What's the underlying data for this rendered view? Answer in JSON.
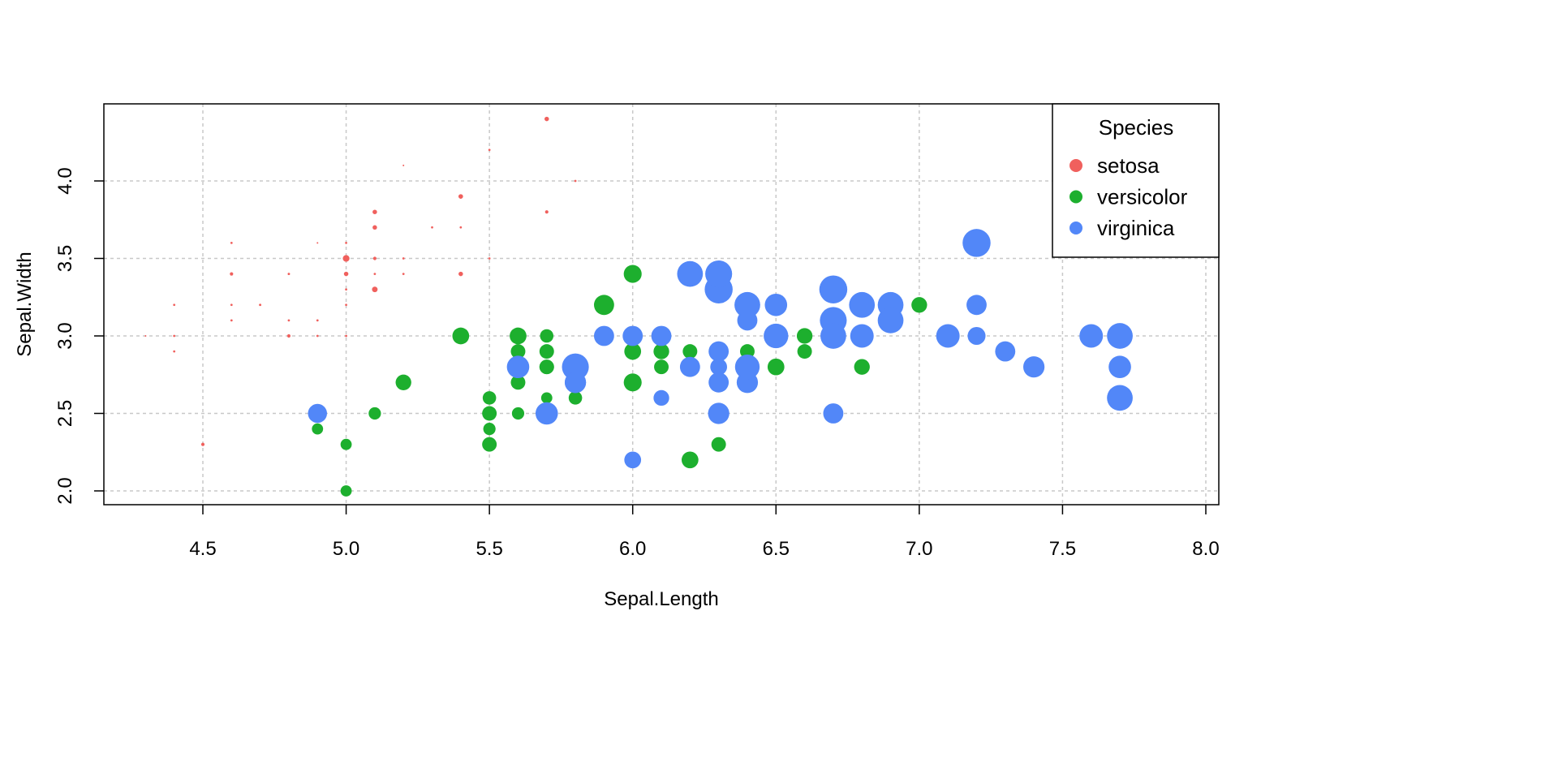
{
  "chart_data": {
    "type": "scatter",
    "title": "",
    "xlabel": "Sepal.Length",
    "ylabel": "Sepal.Width",
    "xlim": [
      4.3,
      8.0
    ],
    "ylim": [
      2.0,
      4.4
    ],
    "xticks": [
      "4.5",
      "5.0",
      "5.5",
      "6.0",
      "6.5",
      "7.0",
      "7.5",
      "8.0"
    ],
    "yticks": [
      "2.0",
      "2.5",
      "3.0",
      "3.5",
      "4.0"
    ],
    "grid": true,
    "legend": {
      "title": "Species",
      "placement": "top-right"
    },
    "point_format": "[x, y, size]",
    "series": [
      {
        "name": "setosa",
        "color": "#F0605D",
        "points": [
          [
            5.1,
            3.5,
            0.2
          ],
          [
            4.9,
            3.0,
            0.2
          ],
          [
            4.7,
            3.2,
            0.2
          ],
          [
            4.6,
            3.1,
            0.2
          ],
          [
            5.0,
            3.6,
            0.2
          ],
          [
            5.4,
            3.9,
            0.4
          ],
          [
            4.6,
            3.4,
            0.3
          ],
          [
            5.0,
            3.4,
            0.2
          ],
          [
            4.4,
            2.9,
            0.2
          ],
          [
            4.9,
            3.1,
            0.1
          ],
          [
            5.4,
            3.7,
            0.2
          ],
          [
            4.8,
            3.4,
            0.2
          ],
          [
            4.8,
            3.0,
            0.1
          ],
          [
            4.3,
            3.0,
            0.1
          ],
          [
            5.8,
            4.0,
            0.2
          ],
          [
            5.7,
            4.4,
            0.4
          ],
          [
            5.4,
            3.9,
            0.4
          ],
          [
            5.1,
            3.5,
            0.3
          ],
          [
            5.7,
            3.8,
            0.3
          ],
          [
            5.1,
            3.8,
            0.3
          ],
          [
            5.4,
            3.4,
            0.2
          ],
          [
            5.1,
            3.7,
            0.4
          ],
          [
            4.6,
            3.6,
            0.2
          ],
          [
            5.1,
            3.3,
            0.5
          ],
          [
            4.8,
            3.4,
            0.2
          ],
          [
            5.0,
            3.0,
            0.2
          ],
          [
            5.0,
            3.4,
            0.4
          ],
          [
            5.2,
            3.5,
            0.2
          ],
          [
            5.2,
            3.4,
            0.2
          ],
          [
            4.7,
            3.2,
            0.2
          ],
          [
            4.8,
            3.1,
            0.2
          ],
          [
            5.4,
            3.4,
            0.4
          ],
          [
            5.2,
            4.1,
            0.1
          ],
          [
            5.5,
            4.2,
            0.2
          ],
          [
            4.9,
            3.1,
            0.2
          ],
          [
            5.0,
            3.2,
            0.2
          ],
          [
            5.5,
            3.5,
            0.2
          ],
          [
            4.9,
            3.6,
            0.1
          ],
          [
            4.4,
            3.0,
            0.2
          ],
          [
            5.1,
            3.4,
            0.2
          ],
          [
            5.0,
            3.5,
            0.3
          ],
          [
            4.5,
            2.3,
            0.3
          ],
          [
            4.4,
            3.2,
            0.2
          ],
          [
            5.0,
            3.5,
            0.6
          ],
          [
            5.1,
            3.8,
            0.4
          ],
          [
            4.8,
            3.0,
            0.3
          ],
          [
            5.1,
            3.8,
            0.2
          ],
          [
            4.6,
            3.2,
            0.2
          ],
          [
            5.3,
            3.7,
            0.2
          ],
          [
            5.0,
            3.3,
            0.2
          ]
        ]
      },
      {
        "name": "versicolor",
        "color": "#1DAF2E",
        "points": [
          [
            7.0,
            3.2,
            1.4
          ],
          [
            6.4,
            3.2,
            1.5
          ],
          [
            6.9,
            3.1,
            1.5
          ],
          [
            5.5,
            2.3,
            1.3
          ],
          [
            6.5,
            2.8,
            1.5
          ],
          [
            5.7,
            2.8,
            1.3
          ],
          [
            6.3,
            3.3,
            1.6
          ],
          [
            4.9,
            2.4,
            1.0
          ],
          [
            6.6,
            2.9,
            1.3
          ],
          [
            5.2,
            2.7,
            1.4
          ],
          [
            5.0,
            2.0,
            1.0
          ],
          [
            5.9,
            3.0,
            1.5
          ],
          [
            6.0,
            2.2,
            1.0
          ],
          [
            6.1,
            2.9,
            1.4
          ],
          [
            5.6,
            2.9,
            1.3
          ],
          [
            6.7,
            3.1,
            1.4
          ],
          [
            5.6,
            3.0,
            1.5
          ],
          [
            5.8,
            2.7,
            1.0
          ],
          [
            6.2,
            2.2,
            1.5
          ],
          [
            5.6,
            2.5,
            1.1
          ],
          [
            5.9,
            3.2,
            1.8
          ],
          [
            6.1,
            2.8,
            1.3
          ],
          [
            6.3,
            2.5,
            1.5
          ],
          [
            6.1,
            2.8,
            1.2
          ],
          [
            6.4,
            2.9,
            1.3
          ],
          [
            6.6,
            3.0,
            1.4
          ],
          [
            6.8,
            2.8,
            1.4
          ],
          [
            6.7,
            3.0,
            1.7
          ],
          [
            6.0,
            2.9,
            1.5
          ],
          [
            5.7,
            2.6,
            1.0
          ],
          [
            5.5,
            2.4,
            1.1
          ],
          [
            5.5,
            2.4,
            1.0
          ],
          [
            5.8,
            2.7,
            1.2
          ],
          [
            6.0,
            2.7,
            1.6
          ],
          [
            5.4,
            3.0,
            1.5
          ],
          [
            6.0,
            3.4,
            1.6
          ],
          [
            6.7,
            3.1,
            1.5
          ],
          [
            6.3,
            2.3,
            1.3
          ],
          [
            5.6,
            3.0,
            1.3
          ],
          [
            5.5,
            2.5,
            1.3
          ],
          [
            5.5,
            2.6,
            1.2
          ],
          [
            6.1,
            3.0,
            1.4
          ],
          [
            5.8,
            2.6,
            1.2
          ],
          [
            5.0,
            2.3,
            1.0
          ],
          [
            5.6,
            2.7,
            1.3
          ],
          [
            5.7,
            3.0,
            1.2
          ],
          [
            5.7,
            2.9,
            1.3
          ],
          [
            6.2,
            2.9,
            1.3
          ],
          [
            5.1,
            2.5,
            1.1
          ],
          [
            5.7,
            2.8,
            1.3
          ]
        ]
      },
      {
        "name": "virginica",
        "color": "#5287F8",
        "points": [
          [
            6.3,
            3.3,
            2.5
          ],
          [
            5.8,
            2.7,
            1.9
          ],
          [
            7.1,
            3.0,
            2.1
          ],
          [
            6.3,
            2.9,
            1.8
          ],
          [
            6.5,
            3.0,
            2.2
          ],
          [
            7.6,
            3.0,
            2.1
          ],
          [
            4.9,
            2.5,
            1.7
          ],
          [
            7.3,
            2.9,
            1.8
          ],
          [
            6.7,
            2.5,
            1.8
          ],
          [
            7.2,
            3.6,
            2.5
          ],
          [
            6.5,
            3.2,
            2.0
          ],
          [
            6.4,
            2.7,
            1.9
          ],
          [
            6.8,
            3.0,
            2.1
          ],
          [
            5.7,
            2.5,
            2.0
          ],
          [
            5.8,
            2.8,
            2.4
          ],
          [
            6.4,
            3.2,
            2.3
          ],
          [
            6.5,
            3.0,
            1.8
          ],
          [
            7.7,
            3.8,
            2.2
          ],
          [
            7.7,
            2.6,
            2.3
          ],
          [
            6.0,
            2.2,
            1.5
          ],
          [
            6.9,
            3.2,
            2.3
          ],
          [
            5.6,
            2.8,
            2.0
          ],
          [
            7.7,
            2.8,
            2.0
          ],
          [
            6.3,
            2.7,
            1.8
          ],
          [
            6.7,
            3.3,
            2.1
          ],
          [
            7.2,
            3.2,
            1.8
          ],
          [
            6.2,
            2.8,
            1.8
          ],
          [
            6.1,
            3.0,
            1.8
          ],
          [
            6.4,
            2.8,
            2.1
          ],
          [
            7.2,
            3.0,
            1.6
          ],
          [
            7.4,
            2.8,
            1.9
          ],
          [
            7.9,
            3.8,
            2.0
          ],
          [
            6.4,
            2.8,
            2.2
          ],
          [
            6.3,
            2.8,
            1.5
          ],
          [
            6.1,
            2.6,
            1.4
          ],
          [
            7.7,
            3.0,
            2.3
          ],
          [
            6.3,
            3.4,
            2.4
          ],
          [
            6.4,
            3.1,
            1.8
          ],
          [
            6.0,
            3.0,
            1.8
          ],
          [
            6.9,
            3.1,
            2.1
          ],
          [
            6.7,
            3.1,
            2.4
          ],
          [
            6.9,
            3.1,
            2.3
          ],
          [
            5.8,
            2.7,
            1.9
          ],
          [
            6.8,
            3.2,
            2.3
          ],
          [
            6.7,
            3.3,
            2.5
          ],
          [
            6.7,
            3.0,
            2.3
          ],
          [
            6.3,
            2.5,
            1.9
          ],
          [
            6.5,
            3.0,
            2.0
          ],
          [
            6.2,
            3.4,
            2.3
          ],
          [
            5.9,
            3.0,
            1.8
          ]
        ]
      }
    ]
  }
}
